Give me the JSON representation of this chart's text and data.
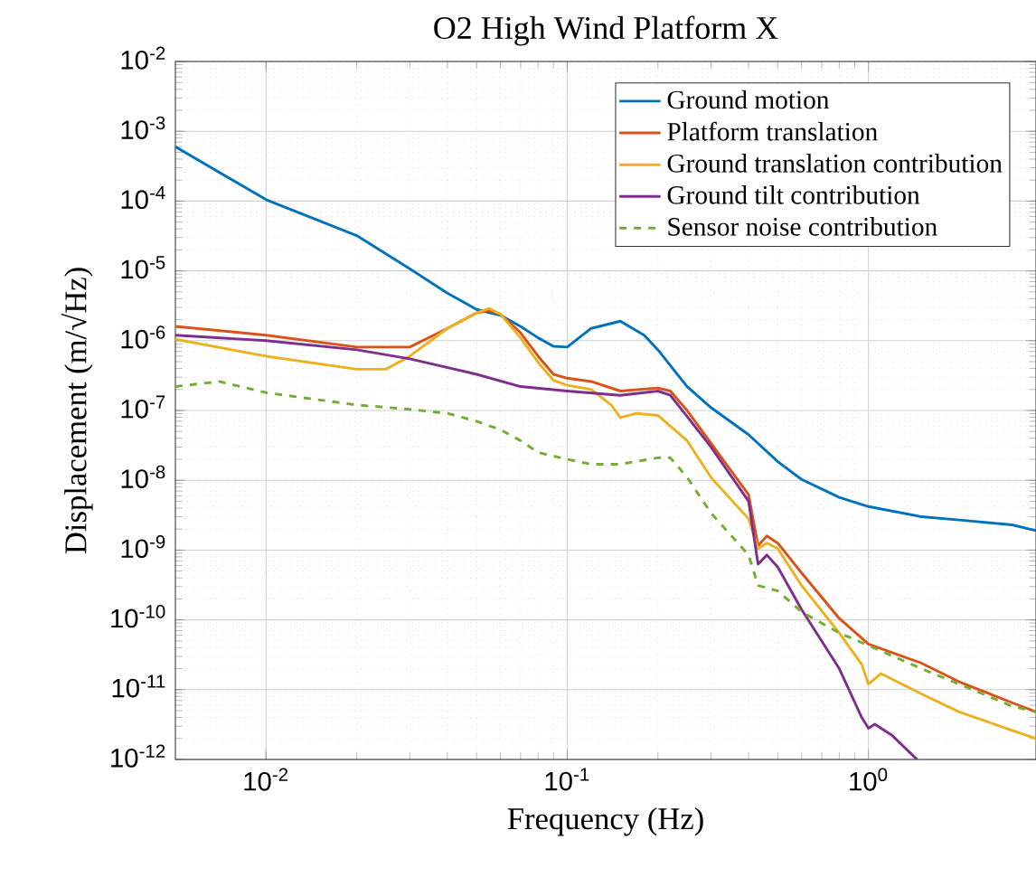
{
  "chart_data": {
    "type": "line",
    "title": "O2 High Wind Platform X",
    "xlabel": "Frequency (Hz)",
    "ylabel": "Displacement (m/√Hz)",
    "log": "xy",
    "grid": true,
    "legend": "top right",
    "xlim": [
      0.005,
      3.6
    ],
    "ylim": [
      1e-12,
      0.01
    ],
    "xticks": [
      {
        "value": 0.01,
        "label": "10$^{-2}$"
      },
      {
        "value": 0.1,
        "label": "10$^{-1}$"
      },
      {
        "value": 1,
        "label": "10$^{0}$"
      }
    ],
    "yticks": [
      {
        "value": 1e-12,
        "label": "10$^{-12}$"
      },
      {
        "value": 1e-11,
        "label": "10$^{-11}$"
      },
      {
        "value": 1e-10,
        "label": "10$^{-10}$"
      },
      {
        "value": 1e-09,
        "label": "10$^{-9}$"
      },
      {
        "value": 1e-08,
        "label": "10$^{-8}$"
      },
      {
        "value": 1e-07,
        "label": "10$^{-7}$"
      },
      {
        "value": 1e-06,
        "label": "10$^{-6}$"
      },
      {
        "value": 1e-05,
        "label": "10$^{-5}$"
      },
      {
        "value": 0.0001,
        "label": "10$^{-4}$"
      },
      {
        "value": 0.001,
        "label": "10$^{-3}$"
      },
      {
        "value": 0.01,
        "label": "10$^{-2}$"
      }
    ],
    "series": [
      {
        "name": "Ground motion",
        "color": "#0072bd",
        "line_style": "solid",
        "x": [
          0.005,
          0.01,
          0.02,
          0.03,
          0.04,
          0.05,
          0.06,
          0.07,
          0.08,
          0.09,
          0.1,
          0.12,
          0.15,
          0.18,
          0.2,
          0.25,
          0.3,
          0.4,
          0.5,
          0.6,
          0.8,
          1,
          1.5,
          2,
          3,
          3.6
        ],
        "values": [
          0.0006,
          0.000105,
          3.2e-05,
          1.07e-05,
          4.8e-06,
          2.8e-06,
          2.3e-06,
          1.6e-06,
          1.1e-06,
          8.3e-07,
          8.1e-07,
          1.5e-06,
          1.9e-06,
          1.2e-06,
          7.4e-07,
          2.2e-07,
          1.1e-07,
          4.5e-08,
          1.85e-08,
          1.03e-08,
          5.7e-09,
          4.2e-09,
          3e-09,
          2.7e-09,
          2.3e-09,
          1.9e-09
        ]
      },
      {
        "name": "Platform translation",
        "color": "#d95319",
        "line_style": "solid",
        "x": [
          0.005,
          0.01,
          0.02,
          0.03,
          0.04,
          0.05,
          0.055,
          0.06,
          0.07,
          0.08,
          0.09,
          0.1,
          0.12,
          0.15,
          0.2,
          0.22,
          0.25,
          0.3,
          0.4,
          0.43,
          0.46,
          0.5,
          0.6,
          0.8,
          1,
          1.5,
          2,
          3,
          3.6
        ],
        "values": [
          1.6e-06,
          1.2e-06,
          8.1e-07,
          8.1e-07,
          1.5e-06,
          2.5e-06,
          2.7e-06,
          2.4e-06,
          1.3e-06,
          6e-07,
          3.3e-07,
          2.9e-07,
          2.6e-07,
          1.9e-07,
          2.1e-07,
          1.9e-07,
          1e-07,
          3.4e-08,
          6.2e-09,
          1.15e-09,
          1.6e-09,
          1.26e-09,
          4.7e-10,
          1.05e-10,
          4.5e-11,
          2.4e-11,
          1.3e-11,
          6.5e-12,
          4.8e-12
        ]
      },
      {
        "name": "Ground translation contribution",
        "color": "#edb120",
        "line_style": "solid",
        "x": [
          0.005,
          0.01,
          0.02,
          0.025,
          0.03,
          0.04,
          0.05,
          0.055,
          0.06,
          0.07,
          0.08,
          0.09,
          0.1,
          0.12,
          0.14,
          0.15,
          0.17,
          0.2,
          0.25,
          0.3,
          0.4,
          0.43,
          0.46,
          0.5,
          0.6,
          0.8,
          0.95,
          1,
          1.1,
          1.5,
          2,
          3,
          3.6
        ],
        "values": [
          1.05e-06,
          6e-07,
          3.9e-07,
          3.9e-07,
          6e-07,
          1.5e-06,
          2.5e-06,
          2.9e-06,
          2.4e-06,
          1.1e-06,
          4.9e-07,
          2.7e-07,
          2.3e-07,
          2e-07,
          1.2e-07,
          7.9e-08,
          9.1e-08,
          8.5e-08,
          3.7e-08,
          1.1e-08,
          2.8e-09,
          1.05e-09,
          1.26e-09,
          1.05e-09,
          3.1e-10,
          6.5e-11,
          2.3e-11,
          1.2e-11,
          1.7e-11,
          8.7e-12,
          4.8e-12,
          2.6e-12,
          2e-12
        ]
      },
      {
        "name": "Ground tilt contribution",
        "color": "#7e2f8e",
        "line_style": "solid",
        "x": [
          0.005,
          0.01,
          0.02,
          0.03,
          0.05,
          0.07,
          0.1,
          0.15,
          0.2,
          0.22,
          0.25,
          0.3,
          0.4,
          0.43,
          0.46,
          0.5,
          0.6,
          0.8,
          0.95,
          1,
          1.05,
          1.2,
          1.45
        ],
        "values": [
          1.2e-06,
          1e-06,
          7.4e-07,
          5.5e-07,
          3.3e-07,
          2.2e-07,
          1.9e-07,
          1.65e-07,
          1.9e-07,
          1.65e-07,
          8.2e-08,
          3e-08,
          5e-09,
          6.3e-10,
          8.5e-10,
          5.7e-10,
          1.4e-10,
          2e-11,
          4e-12,
          2.8e-12,
          3.2e-12,
          2.2e-12,
          1e-12
        ]
      },
      {
        "name": "Sensor noise contribution",
        "color": "#77ac30",
        "line_style": "dashed",
        "x": [
          0.005,
          0.007,
          0.01,
          0.02,
          0.03,
          0.04,
          0.05,
          0.06,
          0.07,
          0.08,
          0.1,
          0.12,
          0.15,
          0.2,
          0.22,
          0.25,
          0.3,
          0.4,
          0.43,
          0.5,
          0.6,
          0.8,
          1,
          1.5,
          2,
          3,
          3.6
        ],
        "values": [
          2.2e-07,
          2.6e-07,
          1.8e-07,
          1.2e-07,
          1.04e-07,
          9.1e-08,
          7e-08,
          5.3e-08,
          3.7e-08,
          2.5e-08,
          2e-08,
          1.7e-08,
          1.7e-08,
          2.1e-08,
          2.1e-08,
          1.1e-08,
          3.4e-09,
          8.5e-10,
          3.1e-10,
          2.6e-10,
          1.3e-10,
          6.5e-11,
          4.3e-11,
          2e-11,
          1.2e-11,
          5.8e-12,
          4.8e-12
        ]
      }
    ]
  }
}
